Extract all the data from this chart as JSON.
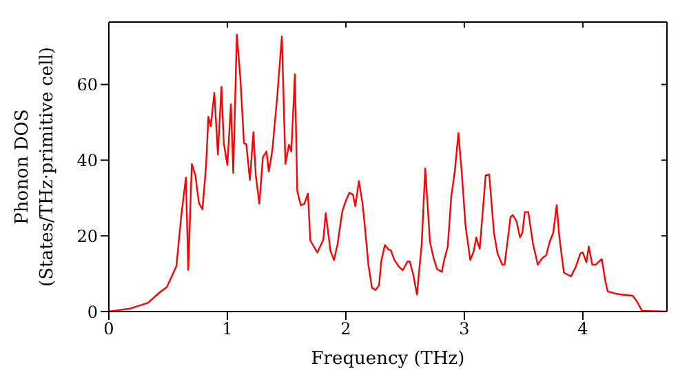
{
  "chart_data": {
    "type": "line",
    "xlabel": "Frequency (THz)",
    "ylabel": "Phonon DOS\n(States/THz·primitive cell)",
    "x": [
      0,
      0.18,
      0.33,
      0.43,
      0.49,
      0.57,
      0.61,
      0.65,
      0.67,
      0.7,
      0.73,
      0.76,
      0.79,
      0.82,
      0.84,
      0.86,
      0.89,
      0.92,
      0.95,
      0.97,
      1.0,
      1.03,
      1.05,
      1.08,
      1.11,
      1.14,
      1.16,
      1.19,
      1.22,
      1.24,
      1.27,
      1.3,
      1.33,
      1.35,
      1.38,
      1.42,
      1.46,
      1.49,
      1.52,
      1.54,
      1.57,
      1.59,
      1.62,
      1.65,
      1.68,
      1.7,
      1.76,
      1.81,
      1.83,
      1.87,
      1.9,
      1.93,
      1.97,
      2.0,
      2.03,
      2.06,
      2.08,
      2.11,
      2.14,
      2.16,
      2.19,
      2.22,
      2.25,
      2.28,
      2.3,
      2.33,
      2.36,
      2.38,
      2.41,
      2.45,
      2.48,
      2.52,
      2.54,
      2.57,
      2.6,
      2.64,
      2.67,
      2.71,
      2.74,
      2.77,
      2.81,
      2.83,
      2.86,
      2.89,
      2.92,
      2.95,
      2.98,
      3.01,
      3.05,
      3.08,
      3.1,
      3.13,
      3.18,
      3.21,
      3.25,
      3.28,
      3.32,
      3.34,
      3.39,
      3.41,
      3.44,
      3.47,
      3.49,
      3.51,
      3.54,
      3.58,
      3.62,
      3.66,
      3.69,
      3.72,
      3.75,
      3.78,
      3.8,
      3.84,
      3.9,
      3.94,
      3.98,
      4.0,
      4.03,
      4.05,
      4.08,
      4.11,
      4.16,
      4.19,
      4.21,
      4.27,
      4.32,
      4.42,
      4.45,
      4.5,
      4.71
    ],
    "series": [
      {
        "color": "#ff0000",
        "values": [
          0,
          0.8,
          2.3,
          5.1,
          6.5,
          12,
          25,
          35.4,
          11,
          39,
          36,
          28.7,
          27,
          38.4,
          51.5,
          49,
          57.8,
          41.5,
          59.4,
          44.5,
          38.7,
          54.8,
          36.6,
          73.2,
          61.5,
          44.5,
          44.2,
          34.8,
          47.4,
          36,
          28.5,
          40.8,
          42.3,
          37,
          42.7,
          56.6,
          72.7,
          39,
          44.1,
          42.3,
          62.7,
          31.8,
          28.1,
          28.5,
          31.2,
          18.8,
          15.6,
          19,
          26,
          16,
          13.6,
          17.8,
          26.5,
          29.3,
          31.4,
          30.9,
          27.8,
          34.5,
          28.7,
          22.7,
          12.4,
          6.3,
          5.7,
          6.9,
          13.6,
          17.6,
          16.4,
          16.2,
          13.6,
          11.8,
          10.9,
          13.2,
          13.2,
          9.6,
          4.5,
          17.8,
          37.8,
          18.4,
          14.2,
          11.2,
          10.5,
          13.6,
          17.2,
          30.5,
          37.2,
          47.2,
          36,
          22.7,
          13.6,
          16,
          19.6,
          16.6,
          36,
          36.2,
          20.8,
          15.4,
          12.4,
          12.4,
          25,
          25.5,
          23.9,
          19.6,
          20.8,
          26.3,
          26.3,
          17.8,
          12.4,
          14.2,
          14.8,
          18.4,
          20.8,
          28.1,
          20.2,
          10.3,
          9.3,
          11.8,
          15.4,
          15.6,
          13,
          17.2,
          12.4,
          12.4,
          13.9,
          8.1,
          5.3,
          4.8,
          4.5,
          4.2,
          3,
          0.2,
          0
        ]
      }
    ],
    "xlim": [
      0,
      4.71
    ],
    "xticks": [
      0,
      1,
      2,
      3,
      4
    ],
    "ylim": [
      0,
      76.5
    ],
    "yticks": [
      0,
      20,
      40,
      60
    ],
    "marker": "none",
    "line_style": "solid"
  }
}
